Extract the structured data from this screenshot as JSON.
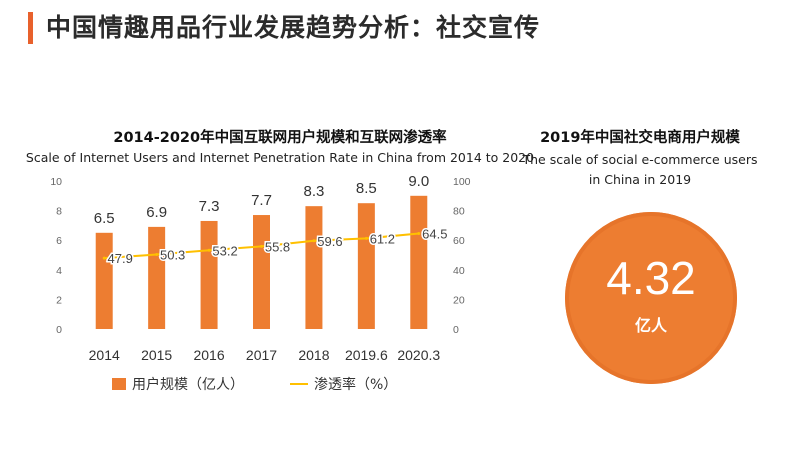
{
  "page_title": "中国情趣用品行业发展趋势分析：社交宣传",
  "colors": {
    "accent": "#e8612c",
    "bar": "#ed7d31",
    "line": "#ffc000",
    "circle": "#ed7d31"
  },
  "chart_data": {
    "type": "bar",
    "title": "2014-2020年中国互联网用户规模和互联网渗透率",
    "subtitle": "Scale of Internet Users and Internet Penetration Rate in China from 2014 to 2020",
    "categories": [
      "2014",
      "2015",
      "2016",
      "2017",
      "2018",
      "2019.6",
      "2020.3"
    ],
    "series": [
      {
        "name": "用户规模（亿人）",
        "type": "bar",
        "axis": "left",
        "values": [
          6.5,
          6.9,
          7.3,
          7.7,
          8.3,
          8.5,
          9.0
        ],
        "labels": [
          "6.5",
          "6.9",
          "7.3",
          "7.7",
          "8.3",
          "8.5",
          "9.0"
        ]
      },
      {
        "name": "渗透率（%）",
        "type": "line",
        "axis": "right",
        "values": [
          47.9,
          50.3,
          53.2,
          55.8,
          59.6,
          61.2,
          64.5
        ],
        "labels": [
          "47.9",
          "50.3",
          "53.2",
          "55.8",
          "59.6",
          "61.2",
          "64.5"
        ]
      }
    ],
    "y_left": {
      "min": 0,
      "max": 10,
      "ticks": [
        "0",
        "2",
        "4",
        "6",
        "8",
        "10"
      ]
    },
    "y_right": {
      "min": 0,
      "max": 100,
      "ticks": [
        "0",
        "20",
        "40",
        "60",
        "80",
        "100"
      ]
    },
    "grid": false,
    "legend": "bottom"
  },
  "right_panel": {
    "title": "2019年中国社交电商用户规模",
    "subtitle_line1": "The scale of social e-commerce users",
    "subtitle_line2": "in China in 2019",
    "value": "4.32",
    "unit": "亿人"
  }
}
